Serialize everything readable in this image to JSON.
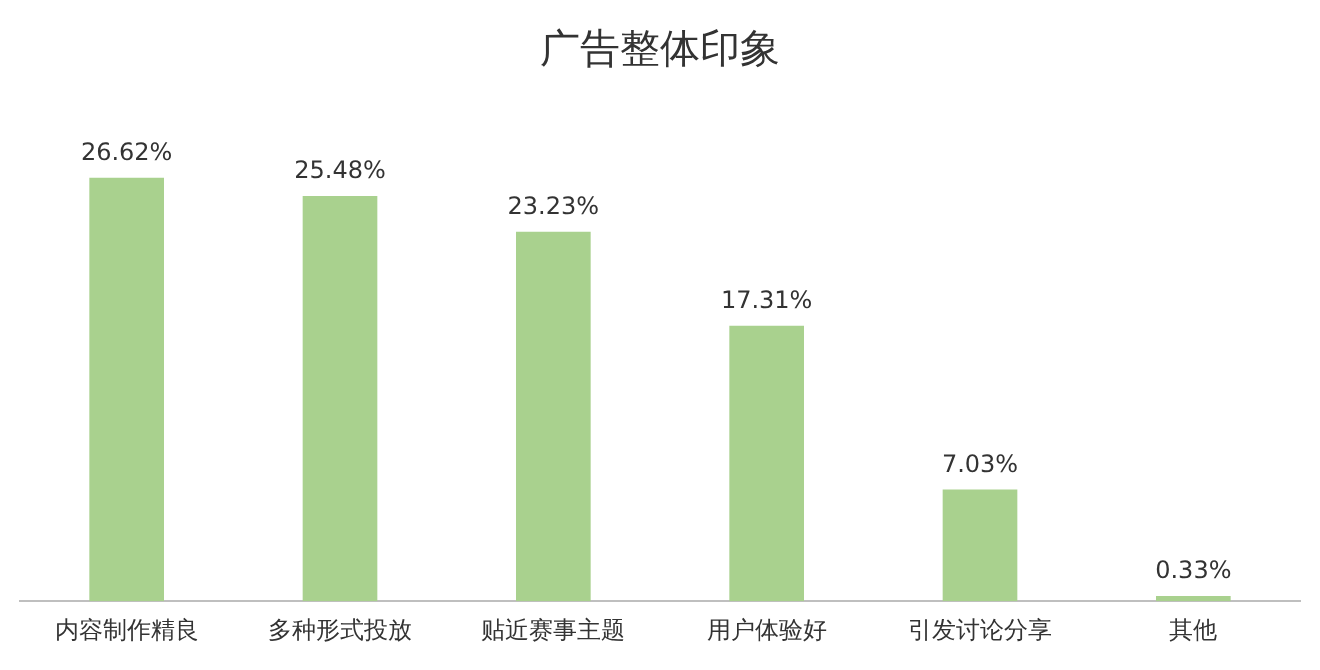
{
  "chart_data": {
    "type": "bar",
    "title": "广告整体印象",
    "categories": [
      "内容制作精良",
      "多种形式投放",
      "贴近赛事主题",
      "用户体验好",
      "引发讨论分享",
      "其他"
    ],
    "values": [
      26.62,
      25.48,
      23.23,
      17.31,
      7.03,
      0.33
    ],
    "value_labels": [
      "26.62%",
      "25.48%",
      "23.23%",
      "17.31%",
      "7.03%",
      "0.33%"
    ],
    "color": "#a9d18e"
  }
}
